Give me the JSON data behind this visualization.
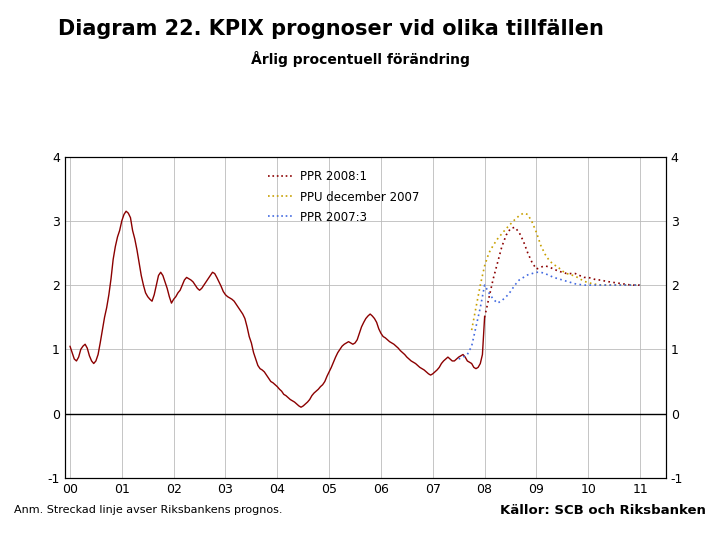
{
  "title": "Diagram 22. KPIX prognoser vid olika tillfällen",
  "subtitle": "Årlig procentuell förändring",
  "footnote": "Anm. Streckad linje avser Riksbankens prognos.",
  "source": "Källor: SCB och Riksbanken",
  "ylim": [
    -1,
    4
  ],
  "yticks": [
    -1,
    0,
    1,
    2,
    3,
    4
  ],
  "xlim": [
    1999.9,
    2011.5
  ],
  "xticks": [
    2000,
    2001,
    2002,
    2003,
    2004,
    2005,
    2006,
    2007,
    2008,
    2009,
    2010,
    2011
  ],
  "xticklabels": [
    "00",
    "01",
    "02",
    "03",
    "04",
    "05",
    "06",
    "07",
    "08",
    "09",
    "10",
    "11"
  ],
  "actual_color": "#8B0000",
  "ppr2008_color": "#8B0000",
  "ppu_color": "#C8A000",
  "ppr2007_color": "#4169E1",
  "legend_labels": [
    "PPR 2008:1",
    "PPU december 2007",
    "PPR 2007:3"
  ],
  "background_color": "#FFFFFF",
  "footer_bar_color": "#1a3a7a",
  "grid_color": "#BBBBBB",
  "actual_x": [
    2000.0,
    2000.042,
    2000.083,
    2000.125,
    2000.167,
    2000.208,
    2000.25,
    2000.292,
    2000.333,
    2000.375,
    2000.417,
    2000.458,
    2000.5,
    2000.542,
    2000.583,
    2000.625,
    2000.667,
    2000.708,
    2000.75,
    2000.792,
    2000.833,
    2000.875,
    2000.917,
    2000.958,
    2001.0,
    2001.042,
    2001.083,
    2001.125,
    2001.167,
    2001.208,
    2001.25,
    2001.292,
    2001.333,
    2001.375,
    2001.417,
    2001.458,
    2001.5,
    2001.542,
    2001.583,
    2001.625,
    2001.667,
    2001.708,
    2001.75,
    2001.792,
    2001.833,
    2001.875,
    2001.917,
    2001.958,
    2002.0,
    2002.042,
    2002.083,
    2002.125,
    2002.167,
    2002.208,
    2002.25,
    2002.292,
    2002.333,
    2002.375,
    2002.417,
    2002.458,
    2002.5,
    2002.542,
    2002.583,
    2002.625,
    2002.667,
    2002.708,
    2002.75,
    2002.792,
    2002.833,
    2002.875,
    2002.917,
    2002.958,
    2003.0,
    2003.042,
    2003.083,
    2003.125,
    2003.167,
    2003.208,
    2003.25,
    2003.292,
    2003.333,
    2003.375,
    2003.417,
    2003.458,
    2003.5,
    2003.542,
    2003.583,
    2003.625,
    2003.667,
    2003.708,
    2003.75,
    2003.792,
    2003.833,
    2003.875,
    2003.917,
    2003.958,
    2004.0,
    2004.042,
    2004.083,
    2004.125,
    2004.167,
    2004.208,
    2004.25,
    2004.292,
    2004.333,
    2004.375,
    2004.417,
    2004.458,
    2004.5,
    2004.542,
    2004.583,
    2004.625,
    2004.667,
    2004.708,
    2004.75,
    2004.792,
    2004.833,
    2004.875,
    2004.917,
    2004.958,
    2005.0,
    2005.042,
    2005.083,
    2005.125,
    2005.167,
    2005.208,
    2005.25,
    2005.292,
    2005.333,
    2005.375,
    2005.417,
    2005.458,
    2005.5,
    2005.542,
    2005.583,
    2005.625,
    2005.667,
    2005.708,
    2005.75,
    2005.792,
    2005.833,
    2005.875,
    2005.917,
    2005.958,
    2006.0,
    2006.042,
    2006.083,
    2006.125,
    2006.167,
    2006.208,
    2006.25,
    2006.292,
    2006.333,
    2006.375,
    2006.417,
    2006.458,
    2006.5,
    2006.542,
    2006.583,
    2006.625,
    2006.667,
    2006.708,
    2006.75,
    2006.792,
    2006.833,
    2006.875,
    2006.917,
    2006.958,
    2007.0,
    2007.042,
    2007.083,
    2007.125,
    2007.167,
    2007.208,
    2007.25,
    2007.292,
    2007.333,
    2007.375,
    2007.417,
    2007.458,
    2007.5,
    2007.542,
    2007.583,
    2007.625,
    2007.667,
    2007.708,
    2007.75,
    2007.792,
    2007.833,
    2007.875,
    2007.917,
    2007.958,
    2008.0
  ],
  "actual_y": [
    1.05,
    0.95,
    0.85,
    0.82,
    0.88,
    1.0,
    1.05,
    1.08,
    1.02,
    0.9,
    0.82,
    0.78,
    0.82,
    0.92,
    1.1,
    1.3,
    1.5,
    1.65,
    1.85,
    2.1,
    2.4,
    2.6,
    2.75,
    2.85,
    3.0,
    3.1,
    3.15,
    3.12,
    3.05,
    2.85,
    2.72,
    2.55,
    2.35,
    2.15,
    2.0,
    1.88,
    1.82,
    1.78,
    1.75,
    1.85,
    2.0,
    2.15,
    2.2,
    2.15,
    2.05,
    1.95,
    1.82,
    1.72,
    1.78,
    1.82,
    1.88,
    1.92,
    2.0,
    2.08,
    2.12,
    2.1,
    2.08,
    2.05,
    2.0,
    1.95,
    1.92,
    1.95,
    2.0,
    2.05,
    2.1,
    2.15,
    2.2,
    2.18,
    2.12,
    2.05,
    1.98,
    1.9,
    1.85,
    1.82,
    1.8,
    1.78,
    1.75,
    1.7,
    1.65,
    1.6,
    1.55,
    1.48,
    1.35,
    1.2,
    1.1,
    0.95,
    0.85,
    0.75,
    0.7,
    0.68,
    0.65,
    0.6,
    0.55,
    0.5,
    0.48,
    0.45,
    0.42,
    0.38,
    0.35,
    0.3,
    0.28,
    0.25,
    0.22,
    0.2,
    0.18,
    0.15,
    0.12,
    0.1,
    0.12,
    0.15,
    0.18,
    0.22,
    0.28,
    0.32,
    0.35,
    0.38,
    0.42,
    0.45,
    0.5,
    0.58,
    0.65,
    0.72,
    0.8,
    0.88,
    0.95,
    1.0,
    1.05,
    1.08,
    1.1,
    1.12,
    1.1,
    1.08,
    1.1,
    1.15,
    1.25,
    1.35,
    1.42,
    1.48,
    1.52,
    1.55,
    1.52,
    1.48,
    1.42,
    1.32,
    1.25,
    1.2,
    1.18,
    1.15,
    1.12,
    1.1,
    1.08,
    1.05,
    1.02,
    0.98,
    0.95,
    0.92,
    0.88,
    0.85,
    0.82,
    0.8,
    0.78,
    0.75,
    0.72,
    0.7,
    0.68,
    0.65,
    0.62,
    0.6,
    0.62,
    0.65,
    0.68,
    0.72,
    0.78,
    0.82,
    0.85,
    0.88,
    0.85,
    0.82,
    0.82,
    0.85,
    0.88,
    0.9,
    0.92,
    0.88,
    0.82,
    0.8,
    0.78,
    0.72,
    0.7,
    0.72,
    0.78,
    0.92,
    1.5
  ],
  "ppr2008_x": [
    2008.0,
    2008.083,
    2008.167,
    2008.25,
    2008.333,
    2008.417,
    2008.5,
    2008.583,
    2008.667,
    2008.75,
    2008.833,
    2008.917,
    2009.0,
    2009.083,
    2009.167,
    2009.25,
    2009.333,
    2009.417,
    2009.5,
    2009.583,
    2009.667,
    2009.75,
    2009.833,
    2009.917,
    2010.0,
    2010.083,
    2010.167,
    2010.25,
    2010.333,
    2010.417,
    2010.5,
    2010.583,
    2010.667,
    2010.75,
    2010.833,
    2010.917,
    2011.0
  ],
  "ppr2008_y": [
    1.5,
    1.8,
    2.1,
    2.35,
    2.6,
    2.78,
    2.88,
    2.9,
    2.82,
    2.68,
    2.5,
    2.35,
    2.25,
    2.28,
    2.3,
    2.28,
    2.25,
    2.22,
    2.2,
    2.18,
    2.18,
    2.18,
    2.15,
    2.12,
    2.12,
    2.1,
    2.08,
    2.08,
    2.06,
    2.05,
    2.04,
    2.03,
    2.02,
    2.01,
    2.0,
    2.0,
    2.0
  ],
  "ppu_x": [
    2007.75,
    2007.833,
    2007.917,
    2008.0,
    2008.083,
    2008.167,
    2008.25,
    2008.333,
    2008.417,
    2008.5,
    2008.583,
    2008.667,
    2008.75,
    2008.833,
    2008.917,
    2009.0,
    2009.083,
    2009.167,
    2009.25,
    2009.333,
    2009.417,
    2009.5,
    2009.583,
    2009.667,
    2009.75,
    2009.833,
    2009.917,
    2010.0,
    2010.083,
    2010.167,
    2010.25,
    2010.333,
    2010.417,
    2010.5,
    2010.583,
    2010.667,
    2010.75,
    2010.833,
    2010.917,
    2011.0
  ],
  "ppu_y": [
    1.3,
    1.65,
    2.0,
    2.3,
    2.5,
    2.62,
    2.72,
    2.8,
    2.88,
    2.95,
    3.02,
    3.08,
    3.12,
    3.1,
    2.98,
    2.82,
    2.62,
    2.48,
    2.38,
    2.32,
    2.28,
    2.22,
    2.18,
    2.16,
    2.14,
    2.1,
    2.06,
    2.04,
    2.02,
    2.01,
    2.0,
    2.0,
    2.0,
    2.0,
    2.0,
    2.0,
    2.0,
    2.0,
    2.0,
    2.0
  ],
  "ppr2007_x": [
    2007.5,
    2007.583,
    2007.667,
    2007.75,
    2007.833,
    2007.917,
    2008.0,
    2008.083,
    2008.167,
    2008.25,
    2008.333,
    2008.417,
    2008.5,
    2008.583,
    2008.667,
    2008.75,
    2008.833,
    2008.917,
    2009.0,
    2009.083,
    2009.167,
    2009.25,
    2009.333,
    2009.417,
    2009.5,
    2009.583,
    2009.667,
    2009.75,
    2009.833,
    2009.917,
    2010.0,
    2010.083,
    2010.167,
    2010.25,
    2010.333,
    2010.417,
    2010.5,
    2010.583,
    2010.667,
    2010.75,
    2010.833,
    2010.917,
    2011.0
  ],
  "ppr2007_y": [
    0.85,
    0.88,
    0.92,
    1.05,
    1.35,
    1.65,
    2.0,
    1.88,
    1.78,
    1.72,
    1.76,
    1.82,
    1.9,
    2.0,
    2.08,
    2.12,
    2.16,
    2.18,
    2.2,
    2.2,
    2.18,
    2.15,
    2.12,
    2.1,
    2.08,
    2.06,
    2.04,
    2.02,
    2.01,
    2.0,
    2.0,
    2.0,
    2.0,
    2.0,
    2.0,
    2.0,
    2.0,
    2.0,
    2.0,
    2.0,
    2.0,
    2.0,
    2.0
  ]
}
